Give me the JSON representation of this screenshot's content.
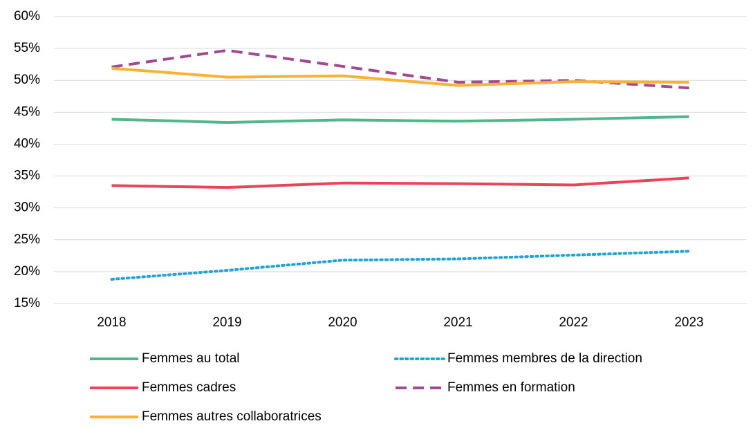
{
  "chart_data": {
    "type": "line",
    "categories": [
      "2018",
      "2019",
      "2020",
      "2021",
      "2022",
      "2023"
    ],
    "series": [
      {
        "name": "Femmes au total",
        "color": "#52b58c",
        "style": "solid",
        "values": [
          43.9,
          43.4,
          43.8,
          43.6,
          43.9,
          44.3
        ]
      },
      {
        "name": "Femmes membres de la direction",
        "color": "#1fa4dc",
        "style": "dotted",
        "values": [
          18.8,
          20.2,
          21.8,
          22.0,
          22.6,
          23.2
        ]
      },
      {
        "name": "Femmes cadres",
        "color": "#e8455a",
        "style": "solid",
        "values": [
          33.5,
          33.2,
          33.9,
          33.8,
          33.6,
          34.7
        ]
      },
      {
        "name": "Femmes en formation",
        "color": "#a24a8f",
        "style": "dashed",
        "values": [
          52.1,
          54.7,
          52.2,
          49.7,
          50.0,
          48.8
        ]
      },
      {
        "name": "Femmes autres collaboratrices",
        "color": "#fbb131",
        "style": "solid",
        "values": [
          51.9,
          50.5,
          50.7,
          49.2,
          49.8,
          49.7
        ]
      }
    ],
    "ylim": [
      15,
      60
    ],
    "yticks": [
      {
        "value": 15,
        "label": "15%"
      },
      {
        "value": 20,
        "label": "20%"
      },
      {
        "value": 25,
        "label": "25%"
      },
      {
        "value": 30,
        "label": "30%"
      },
      {
        "value": 35,
        "label": "35%"
      },
      {
        "value": 40,
        "label": "40%"
      },
      {
        "value": 45,
        "label": "45%"
      },
      {
        "value": 50,
        "label": "50%"
      },
      {
        "value": 55,
        "label": "55%"
      },
      {
        "value": 60,
        "label": "60%"
      }
    ],
    "grid": true,
    "legend": "bottom"
  }
}
